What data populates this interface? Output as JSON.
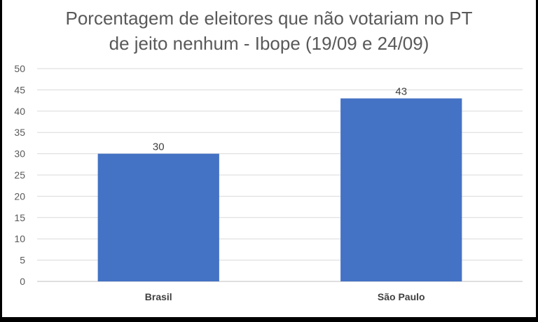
{
  "chart_data": {
    "type": "bar",
    "title_lines": [
      "Porcentagem de eleitores que não votariam no PT",
      "de jeito nenhum - Ibope (19/09 e 24/09)"
    ],
    "categories": [
      "Brasil",
      "São Paulo"
    ],
    "values": [
      30,
      43
    ],
    "data_labels": [
      "30",
      "43"
    ],
    "yticks": [
      "0",
      "5",
      "10",
      "15",
      "20",
      "25",
      "30",
      "35",
      "40",
      "45",
      "50"
    ],
    "ylim": [
      0,
      50
    ],
    "grid": true,
    "legend": "none",
    "colors": {
      "bar": "#4472C4",
      "grid": "#D9D9D9",
      "axis": "#BFBFBF",
      "text": "#595959"
    }
  }
}
